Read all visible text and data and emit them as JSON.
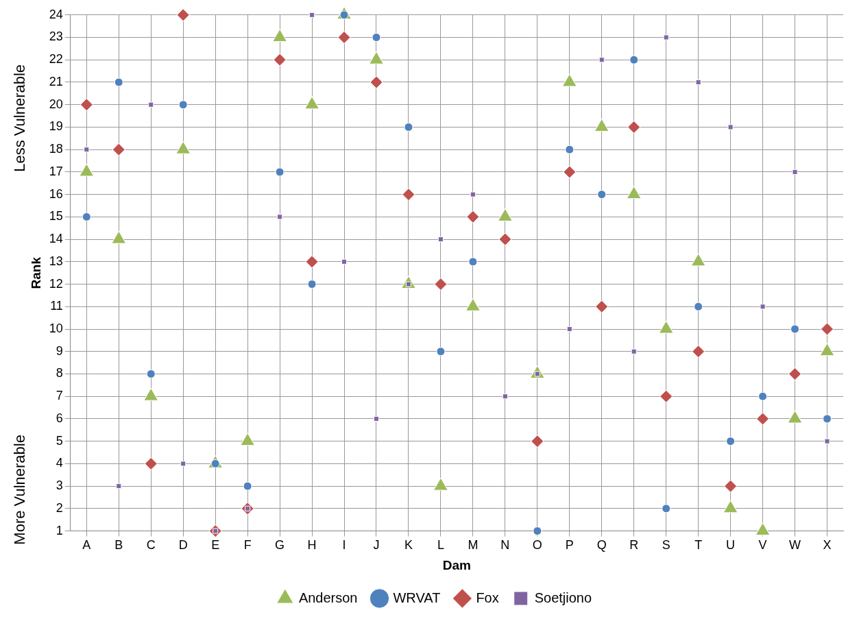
{
  "chart_data": {
    "type": "scatter",
    "xlabel": "Dam",
    "ylabel": "Rank",
    "annotations": [
      "Less Vulnerable",
      "More Vulnerable"
    ],
    "categories": [
      "A",
      "B",
      "C",
      "D",
      "E",
      "F",
      "G",
      "H",
      "I",
      "J",
      "K",
      "L",
      "M",
      "N",
      "O",
      "P",
      "Q",
      "R",
      "S",
      "T",
      "U",
      "V",
      "W",
      "X"
    ],
    "ylim": [
      1,
      24
    ],
    "yticks": [
      1,
      2,
      3,
      4,
      5,
      6,
      7,
      8,
      9,
      10,
      11,
      12,
      13,
      14,
      15,
      16,
      17,
      18,
      19,
      20,
      21,
      22,
      23,
      24
    ],
    "grid": true,
    "legend": "bottom",
    "series": [
      {
        "name": "Anderson",
        "color": "#9bbb59",
        "marker": "triangle",
        "values": [
          17,
          14,
          7,
          18,
          4,
          5,
          23,
          20,
          24,
          22,
          12,
          3,
          11,
          15,
          8,
          21,
          19,
          16,
          10,
          13,
          2,
          1,
          6,
          9
        ]
      },
      {
        "name": "WRVAT",
        "color": "#4f81bd",
        "marker": "circle",
        "values": [
          15,
          21,
          8,
          20,
          4,
          3,
          17,
          12,
          24,
          23,
          19,
          9,
          13,
          null,
          1,
          18,
          16,
          22,
          2,
          11,
          5,
          7,
          10,
          6
        ]
      },
      {
        "name": "Fox",
        "color": "#c0504d",
        "marker": "diamond",
        "values": [
          20,
          18,
          4,
          24,
          1,
          2,
          22,
          13,
          23,
          21,
          16,
          12,
          15,
          14,
          5,
          17,
          11,
          19,
          7,
          9,
          3,
          6,
          8,
          10
        ]
      },
      {
        "name": "Soetjiono",
        "color": "#8064a2",
        "marker": "square",
        "values": [
          18,
          3,
          20,
          4,
          1,
          2,
          15,
          24,
          13,
          6,
          12,
          14,
          16,
          7,
          8,
          10,
          22,
          9,
          23,
          21,
          19,
          11,
          17,
          5
        ]
      }
    ]
  }
}
